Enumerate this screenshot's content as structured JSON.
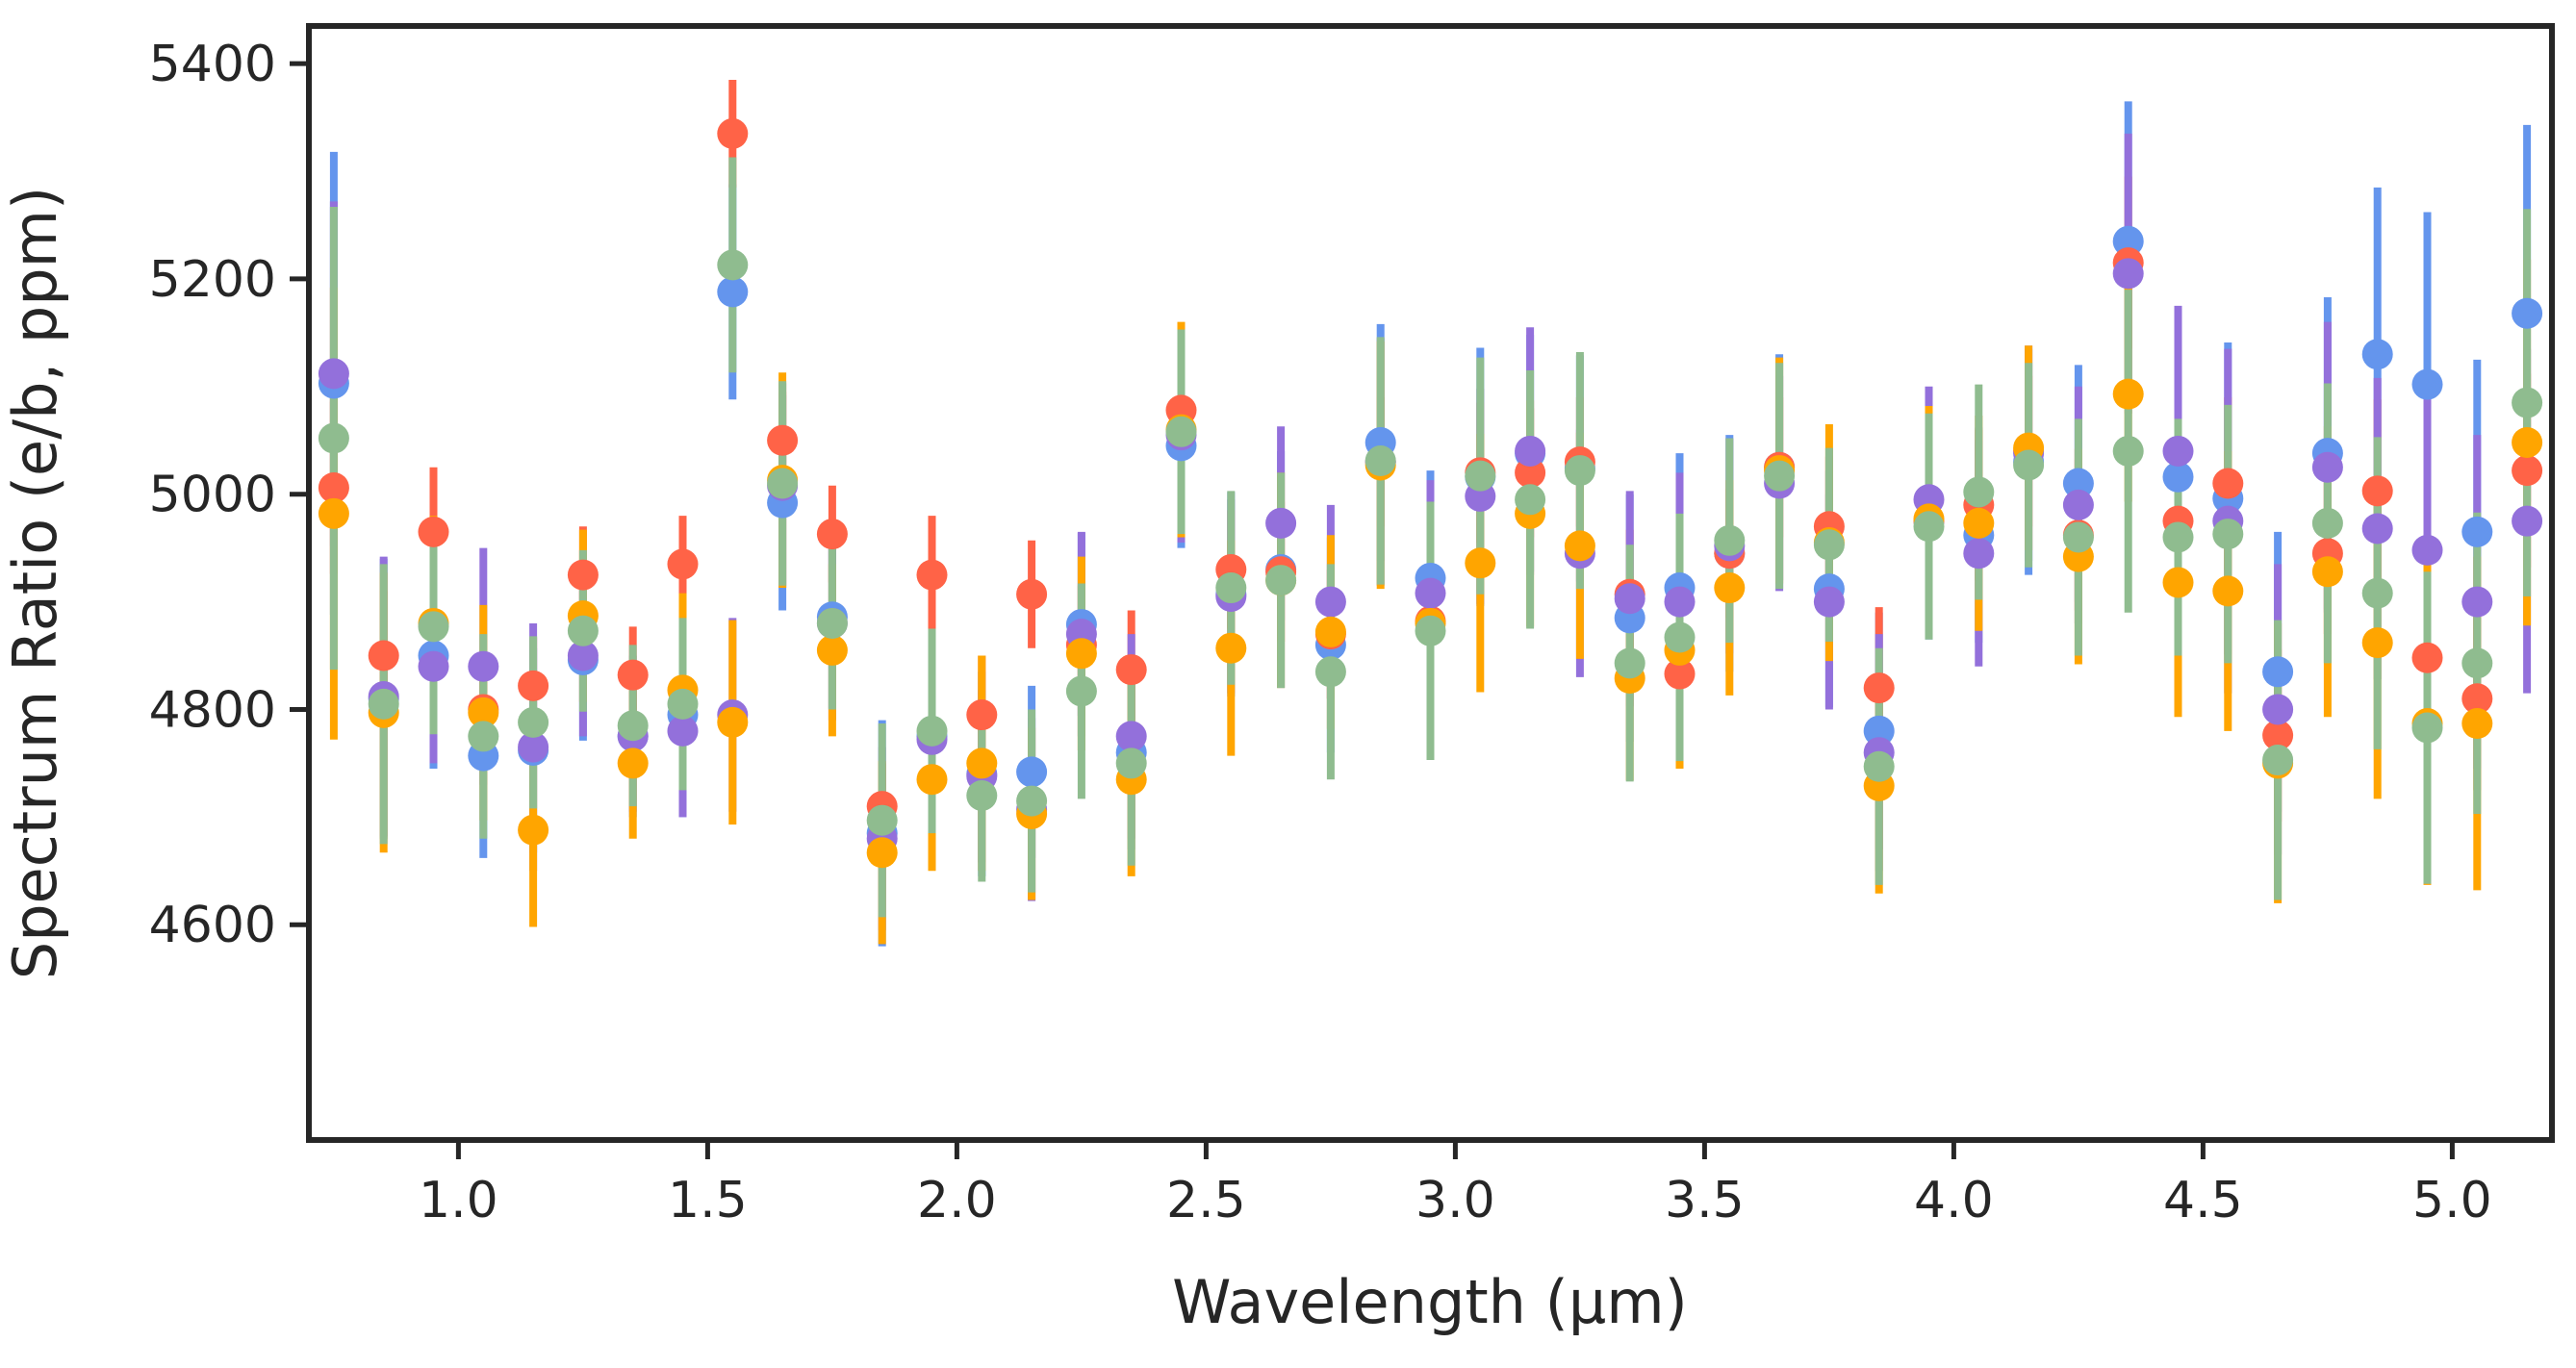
{
  "chart_data": {
    "type": "scatter",
    "title": "",
    "xlabel": "Wavelength (μm)",
    "ylabel": "Spectrum Ratio (e/b, ppm)",
    "xlim": [
      0.7,
      5.2
    ],
    "ylim": [
      4400,
      5435
    ],
    "xticks": [
      1.0,
      1.5,
      2.0,
      2.5,
      3.0,
      3.5,
      4.0,
      4.5,
      5.0
    ],
    "xtick_labels": [
      "1.0",
      "1.5",
      "2.0",
      "2.5",
      "3.0",
      "3.5",
      "4.0",
      "4.5",
      "5.0"
    ],
    "yticks": [
      4600,
      4800,
      5000,
      5200,
      5400
    ],
    "ytick_labels": [
      "4600",
      "4800",
      "5000",
      "5200",
      "5400"
    ],
    "grid": false,
    "legend": "none",
    "x": [
      0.75,
      0.85,
      0.95,
      1.05,
      1.15,
      1.25,
      1.35,
      1.45,
      1.55,
      1.65,
      1.75,
      1.85,
      1.95,
      2.05,
      2.15,
      2.25,
      2.35,
      2.45,
      2.55,
      2.65,
      2.75,
      2.85,
      2.95,
      3.05,
      3.15,
      3.25,
      3.35,
      3.45,
      3.55,
      3.65,
      3.75,
      3.85,
      3.95,
      4.05,
      4.15,
      4.25,
      4.35,
      4.45,
      4.55,
      4.65,
      4.75,
      4.85,
      4.95,
      5.05,
      5.15
    ],
    "series": [
      {
        "name": "blue",
        "color": "#6495ED",
        "values": [
          5103,
          4810,
          4850,
          4757,
          4762,
          4846,
          4775,
          4795,
          5188,
          4992,
          4886,
          4685,
          4775,
          4740,
          4742,
          4879,
          4760,
          5045,
          4907,
          4930,
          4860,
          5048,
          4922,
          5016,
          5038,
          5024,
          4885,
          4913,
          4945,
          5025,
          4912,
          4780,
          4975,
          4962,
          5030,
          5010,
          5235,
          5016,
          4996,
          4835,
          5038,
          5130,
          5102,
          4965,
          5168
        ],
        "errors": [
          215,
          130,
          105,
          95,
          95,
          75,
          75,
          95,
          100,
          100,
          85,
          105,
          105,
          95,
          80,
          85,
          90,
          95,
          95,
          110,
          100,
          110,
          100,
          120,
          110,
          105,
          115,
          125,
          110,
          105,
          110,
          110,
          110,
          100,
          105,
          110,
          130,
          105,
          145,
          130,
          145,
          155,
          160,
          160,
          175
        ]
      },
      {
        "name": "red",
        "color": "#FF6347",
        "values": [
          5006,
          4850,
          4965,
          4800,
          4822,
          4925,
          4832,
          4935,
          5335,
          5050,
          4963,
          4710,
          4925,
          4795,
          4907,
          4860,
          4837,
          5078,
          4930,
          4928,
          4870,
          5030,
          4882,
          5020,
          5020,
          5030,
          4907,
          4833,
          4945,
          5025,
          4970,
          4820,
          4975,
          4990,
          5040,
          4962,
          5215,
          4975,
          5010,
          4776,
          4945,
          5003,
          4848,
          4810,
          5022
        ],
        "errors": [
          80,
          60,
          60,
          55,
          45,
          45,
          45,
          45,
          50,
          45,
          45,
          40,
          55,
          55,
          50,
          55,
          55,
          60,
          55,
          65,
          60,
          60,
          60,
          65,
          60,
          60,
          60,
          60,
          60,
          65,
          65,
          75,
          65,
          70,
          70,
          70,
          80,
          75,
          80,
          80,
          75,
          85,
          85,
          85,
          90
        ]
      },
      {
        "name": "purple",
        "color": "#9370DB",
        "values": [
          5112,
          4812,
          4840,
          4840,
          4765,
          4850,
          4775,
          4780,
          4795,
          5008,
          4880,
          4680,
          4772,
          4738,
          4707,
          4870,
          4775,
          5055,
          4905,
          4973,
          4900,
          5030,
          4908,
          4998,
          5040,
          4945,
          4903,
          4900,
          4952,
          5010,
          4900,
          4760,
          4995,
          4945,
          5038,
          4990,
          5205,
          5040,
          4975,
          4800,
          5025,
          4968,
          4948,
          4900,
          4975
        ],
        "errors": [
          160,
          130,
          90,
          110,
          115,
          75,
          70,
          80,
          90,
          95,
          90,
          85,
          100,
          80,
          85,
          95,
          95,
          100,
          90,
          90,
          90,
          115,
          105,
          100,
          115,
          115,
          100,
          120,
          100,
          100,
          100,
          110,
          105,
          105,
          100,
          110,
          130,
          135,
          160,
          135,
          135,
          140,
          145,
          155,
          160
        ]
      },
      {
        "name": "orange",
        "color": "#FFA500",
        "values": [
          4982,
          4797,
          4880,
          4797,
          4688,
          4887,
          4750,
          4818,
          4788,
          5013,
          4855,
          4667,
          4735,
          4750,
          4703,
          4852,
          4735,
          5060,
          4857,
          4920,
          4872,
          5027,
          4880,
          4936,
          4982,
          4952,
          4829,
          4855,
          4913,
          5022,
          4955,
          4729,
          4977,
          4973,
          5043,
          4942,
          5093,
          4918,
          4910,
          4750,
          4928,
          4862,
          4787,
          4787,
          5048
        ],
        "errors": [
          210,
          130,
          100,
          100,
          90,
          80,
          70,
          90,
          95,
          100,
          80,
          85,
          85,
          100,
          80,
          90,
          90,
          100,
          100,
          100,
          90,
          115,
          100,
          120,
          105,
          105,
          95,
          110,
          100,
          105,
          110,
          100,
          105,
          100,
          95,
          100,
          100,
          125,
          130,
          130,
          135,
          145,
          150,
          155,
          170
        ]
      },
      {
        "name": "green",
        "color": "#8FBC8F",
        "values": [
          5052,
          4805,
          4877,
          4775,
          4788,
          4873,
          4785,
          4805,
          5213,
          5010,
          4880,
          4697,
          4780,
          4720,
          4715,
          4817,
          4750,
          5058,
          4913,
          4920,
          4835,
          5031,
          4873,
          5017,
          4995,
          5022,
          4843,
          4867,
          4957,
          5017,
          4953,
          4747,
          4970,
          5002,
          5027,
          4960,
          5040,
          4960,
          4963,
          4753,
          4973,
          4908,
          4783,
          4843,
          5085
        ],
        "errors": [
          215,
          130,
          100,
          95,
          80,
          75,
          75,
          80,
          100,
          95,
          80,
          90,
          95,
          80,
          85,
          100,
          95,
          95,
          90,
          100,
          100,
          115,
          120,
          110,
          120,
          110,
          110,
          115,
          95,
          105,
          90,
          110,
          105,
          100,
          95,
          110,
          150,
          110,
          120,
          130,
          130,
          145,
          145,
          140,
          180
        ]
      }
    ]
  }
}
